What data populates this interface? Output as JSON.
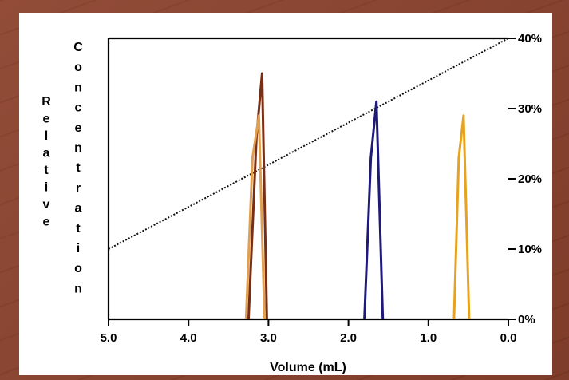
{
  "chart_data": {
    "type": "line",
    "xlabel": "Volume (mL)",
    "ylabel_left": "Relative",
    "ylabel_left_inner": "Concentration",
    "x_ticks": [
      "5.0",
      "4.0",
      "3.0",
      "2.0",
      "1.0",
      "0.0"
    ],
    "x_tick_values": [
      5.0,
      4.0,
      3.0,
      2.0,
      1.0,
      0.0
    ],
    "xlim": [
      5.0,
      0.0
    ],
    "x_reversed": true,
    "y_right_ticks": [
      "0%",
      "10%",
      "20%",
      "30%",
      "40%"
    ],
    "y_right_tick_values": [
      0,
      10,
      20,
      30,
      40
    ],
    "y_right_lim": [
      0,
      40
    ],
    "gradient": {
      "x": [
        5.0,
        0.0
      ],
      "y": [
        10,
        40
      ]
    },
    "series": [
      {
        "color": "#7a2e14",
        "x": [
          3.25,
          3.15,
          3.08,
          3.02
        ],
        "y": [
          0,
          26,
          35,
          0
        ]
      },
      {
        "color": "#e0a050",
        "x": [
          3.28,
          3.2,
          3.12,
          3.05
        ],
        "y": [
          0,
          23,
          29,
          0
        ]
      },
      {
        "color": "#1f1a78",
        "x": [
          1.8,
          1.72,
          1.65,
          1.57
        ],
        "y": [
          0,
          23,
          31,
          0
        ]
      },
      {
        "color": "#e6a322",
        "x": [
          0.68,
          0.62,
          0.56,
          0.49
        ],
        "y": [
          0,
          23,
          29,
          0
        ]
      }
    ]
  }
}
